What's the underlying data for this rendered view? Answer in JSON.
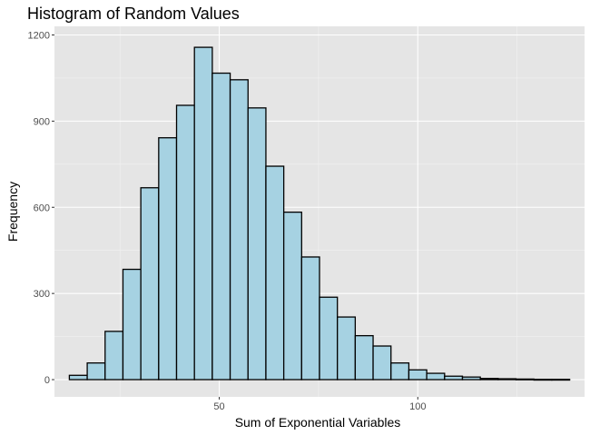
{
  "chart_data": {
    "type": "bar",
    "title": "Histogram of Random Values",
    "xlabel": "Sum of Exponential Variables",
    "ylabel": "Frequency",
    "xlim": [
      8.5,
      142
    ],
    "ylim": [
      -60,
      1230
    ],
    "x_ticks": [
      50,
      100
    ],
    "x_minor_ticks": [
      25,
      75,
      125
    ],
    "y_ticks": [
      0,
      300,
      600,
      900,
      1200
    ],
    "y_minor_ticks": [
      150,
      450,
      750,
      1050
    ],
    "bin_width": 4.5,
    "bins": [
      {
        "x": 14.5,
        "count": 15
      },
      {
        "x": 19,
        "count": 58
      },
      {
        "x": 23.5,
        "count": 168
      },
      {
        "x": 28,
        "count": 384
      },
      {
        "x": 32.5,
        "count": 668
      },
      {
        "x": 37,
        "count": 842
      },
      {
        "x": 41.5,
        "count": 955
      },
      {
        "x": 46,
        "count": 1157
      },
      {
        "x": 50.5,
        "count": 1067
      },
      {
        "x": 55,
        "count": 1044
      },
      {
        "x": 59.5,
        "count": 946
      },
      {
        "x": 64,
        "count": 743
      },
      {
        "x": 68.5,
        "count": 583
      },
      {
        "x": 73,
        "count": 427
      },
      {
        "x": 77.5,
        "count": 287
      },
      {
        "x": 82,
        "count": 218
      },
      {
        "x": 86.5,
        "count": 153
      },
      {
        "x": 91,
        "count": 117
      },
      {
        "x": 95.5,
        "count": 58
      },
      {
        "x": 100,
        "count": 34
      },
      {
        "x": 104.5,
        "count": 22
      },
      {
        "x": 109,
        "count": 12
      },
      {
        "x": 113.5,
        "count": 9
      },
      {
        "x": 118,
        "count": 4
      },
      {
        "x": 122.5,
        "count": 3
      },
      {
        "x": 127,
        "count": 2
      },
      {
        "x": 131.5,
        "count": 1
      },
      {
        "x": 136,
        "count": 1
      }
    ],
    "colors": {
      "bar_fill": "#a6d2e2",
      "bar_stroke": "#000000",
      "panel": "#e5e5e5",
      "grid_major": "#ffffff",
      "grid_minor": "#f2f2f2"
    },
    "grid": true,
    "legend": "none"
  }
}
